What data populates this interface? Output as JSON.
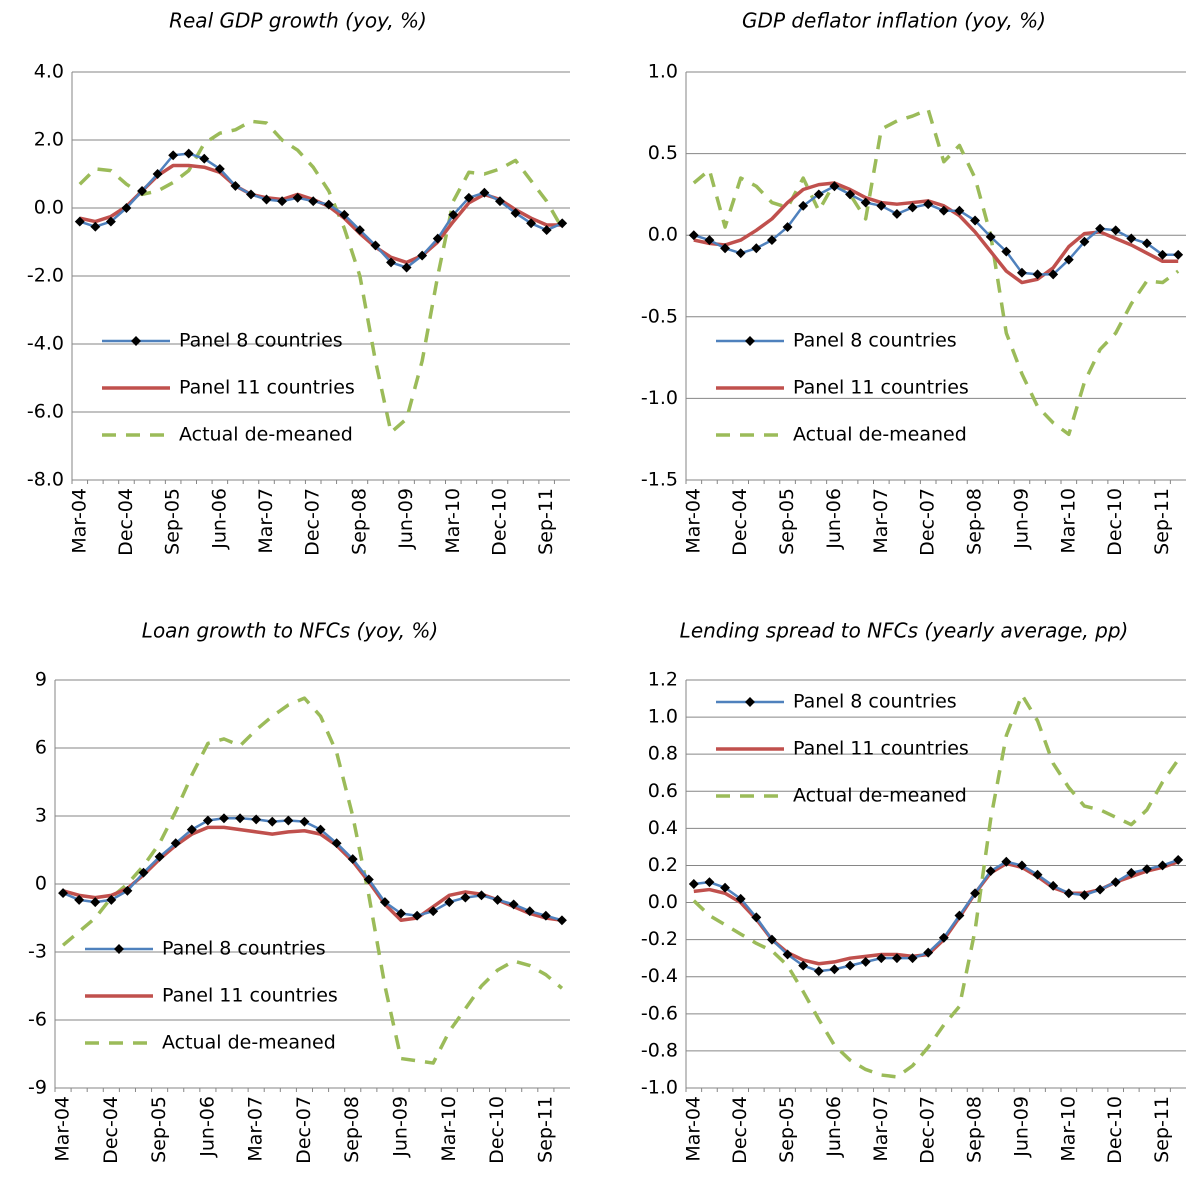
{
  "chart_data": [
    {
      "type": "line",
      "title": "Real GDP growth (yoy, %)",
      "categories": [
        "Mar-04",
        null,
        null,
        "Dec-04",
        null,
        null,
        "Sep-05",
        null,
        null,
        "Jun-06",
        null,
        null,
        "Mar-07",
        null,
        null,
        "Dec-07",
        null,
        null,
        "Sep-08",
        null,
        null,
        "Jun-09",
        null,
        null,
        "Mar-10",
        null,
        null,
        "Dec-10",
        null,
        null,
        "Sep-11",
        null
      ],
      "ylim": [
        -8,
        4
      ],
      "yticks": [
        {
          "value": 4,
          "label": "4.0"
        },
        {
          "value": 2,
          "label": "2.0"
        },
        {
          "value": 0,
          "label": "0.0"
        },
        {
          "value": -2,
          "label": "-2.0"
        },
        {
          "value": -4,
          "label": "-4.0"
        },
        {
          "value": -6,
          "label": "-6.0"
        },
        {
          "value": -8,
          "label": "-8.0"
        }
      ],
      "grid": true,
      "legend": "lower left",
      "series": [
        {
          "name": "Panel 8 countries",
          "color": "#4f81bd",
          "values": [
            -0.4,
            -0.55,
            -0.4,
            0.0,
            0.5,
            1.0,
            1.55,
            1.6,
            1.45,
            1.15,
            0.65,
            0.4,
            0.25,
            0.2,
            0.3,
            0.2,
            0.1,
            -0.2,
            -0.65,
            -1.1,
            -1.6,
            -1.75,
            -1.4,
            -0.9,
            -0.2,
            0.3,
            0.45,
            0.2,
            -0.15,
            -0.45,
            -0.65,
            -0.45
          ]
        },
        {
          "name": "Panel 11 countries",
          "color": "#c0504d",
          "values": [
            -0.3,
            -0.4,
            -0.25,
            0.05,
            0.5,
            0.95,
            1.25,
            1.25,
            1.2,
            1.05,
            0.65,
            0.4,
            0.3,
            0.25,
            0.4,
            0.25,
            0.05,
            -0.3,
            -0.75,
            -1.15,
            -1.45,
            -1.6,
            -1.4,
            -1.0,
            -0.4,
            0.15,
            0.4,
            0.25,
            -0.05,
            -0.3,
            -0.5,
            -0.5
          ]
        },
        {
          "name": "Actual de-meaned",
          "color": "#9bbb59",
          "values": [
            0.7,
            1.15,
            1.1,
            0.7,
            0.4,
            0.5,
            0.75,
            1.1,
            1.9,
            2.2,
            2.3,
            2.55,
            2.5,
            2.0,
            1.7,
            1.2,
            0.5,
            -0.6,
            -2.0,
            -4.5,
            -6.6,
            -6.2,
            -4.5,
            -2.0,
            0.2,
            1.05,
            1.0,
            1.15,
            1.4,
            0.8,
            0.2,
            -0.6
          ]
        }
      ]
    },
    {
      "type": "line",
      "title": "GDP deflator inflation (yoy, %)",
      "categories": [
        "Mar-04",
        null,
        null,
        "Dec-04",
        null,
        null,
        "Sep-05",
        null,
        null,
        "Jun-06",
        null,
        null,
        "Mar-07",
        null,
        null,
        "Dec-07",
        null,
        null,
        "Sep-08",
        null,
        null,
        "Jun-09",
        null,
        null,
        "Mar-10",
        null,
        null,
        "Dec-10",
        null,
        null,
        "Sep-11",
        null
      ],
      "ylim": [
        -1.5,
        1
      ],
      "yticks": [
        {
          "value": 1,
          "label": "1.0"
        },
        0.5,
        {
          "value": 0,
          "label": "0.0"
        },
        -0.5,
        {
          "value": -1,
          "label": "-1.0"
        },
        -1.5
      ],
      "grid": true,
      "legend": "lower left",
      "series": [
        {
          "name": "Panel 8 countries",
          "color": "#4f81bd",
          "values": [
            0.0,
            -0.03,
            -0.08,
            -0.11,
            -0.08,
            -0.03,
            0.05,
            0.18,
            0.25,
            0.3,
            0.25,
            0.2,
            0.18,
            0.13,
            0.17,
            0.19,
            0.15,
            0.15,
            0.09,
            -0.01,
            -0.1,
            -0.23,
            -0.24,
            -0.24,
            -0.15,
            -0.04,
            0.04,
            0.03,
            -0.02,
            -0.05,
            -0.12,
            -0.12
          ]
        },
        {
          "name": "Panel 11 countries",
          "color": "#c0504d",
          "values": [
            -0.03,
            -0.05,
            -0.06,
            -0.03,
            0.03,
            0.1,
            0.2,
            0.28,
            0.31,
            0.32,
            0.28,
            0.23,
            0.2,
            0.19,
            0.2,
            0.21,
            0.18,
            0.12,
            0.02,
            -0.1,
            -0.22,
            -0.29,
            -0.27,
            -0.2,
            -0.07,
            0.01,
            0.02,
            -0.02,
            -0.06,
            -0.11,
            -0.16,
            -0.16
          ]
        },
        {
          "name": "Actual de-meaned",
          "color": "#9bbb59",
          "values": [
            0.32,
            0.4,
            0.05,
            0.35,
            0.3,
            0.2,
            0.17,
            0.35,
            0.15,
            0.32,
            0.25,
            0.1,
            0.65,
            0.7,
            0.73,
            0.77,
            0.45,
            0.55,
            0.35,
            0.0,
            -0.6,
            -0.85,
            -1.05,
            -1.15,
            -1.22,
            -0.9,
            -0.7,
            -0.6,
            -0.42,
            -0.28,
            -0.29,
            -0.22
          ]
        }
      ]
    },
    {
      "type": "line",
      "title": "Loan growth to NFCs (yoy, %)",
      "categories": [
        "Mar-04",
        null,
        null,
        "Dec-04",
        null,
        null,
        "Sep-05",
        null,
        null,
        "Jun-06",
        null,
        null,
        "Mar-07",
        null,
        null,
        "Dec-07",
        null,
        null,
        "Sep-08",
        null,
        null,
        "Jun-09",
        null,
        null,
        "Mar-10",
        null,
        null,
        "Dec-10",
        null,
        null,
        "Sep-11",
        null
      ],
      "ylim": [
        -9,
        9
      ],
      "yticks": [
        9,
        6,
        3,
        0,
        -3,
        -6,
        -9
      ],
      "grid": true,
      "legend": "lower left",
      "series": [
        {
          "name": "Panel 8 countries",
          "color": "#4f81bd",
          "values": [
            -0.4,
            -0.7,
            -0.8,
            -0.7,
            -0.3,
            0.5,
            1.2,
            1.8,
            2.4,
            2.8,
            2.9,
            2.9,
            2.85,
            2.75,
            2.8,
            2.75,
            2.4,
            1.8,
            1.1,
            0.2,
            -0.8,
            -1.3,
            -1.4,
            -1.2,
            -0.8,
            -0.6,
            -0.5,
            -0.7,
            -0.9,
            -1.2,
            -1.4,
            -1.6
          ]
        },
        {
          "name": "Panel 11 countries",
          "color": "#c0504d",
          "values": [
            -0.3,
            -0.5,
            -0.6,
            -0.5,
            -0.2,
            0.4,
            1.1,
            1.7,
            2.2,
            2.5,
            2.5,
            2.4,
            2.3,
            2.2,
            2.3,
            2.35,
            2.2,
            1.7,
            1.0,
            0.1,
            -0.9,
            -1.6,
            -1.5,
            -1.0,
            -0.5,
            -0.35,
            -0.45,
            -0.7,
            -1.0,
            -1.3,
            -1.5,
            -1.6
          ]
        },
        {
          "name": "Actual de-meaned",
          "color": "#9bbb59",
          "values": [
            -2.7,
            -2.1,
            -1.5,
            -0.6,
            0.0,
            0.8,
            1.8,
            3.2,
            4.8,
            6.2,
            6.4,
            6.1,
            6.8,
            7.4,
            7.9,
            8.2,
            7.4,
            5.8,
            3.0,
            -0.5,
            -4.5,
            -7.7,
            -7.8,
            -7.9,
            -6.5,
            -5.5,
            -4.5,
            -3.8,
            -3.4,
            -3.6,
            -4.0,
            -4.6
          ]
        }
      ]
    },
    {
      "type": "line",
      "title": "Lending spread to NFCs (yearly average, pp)",
      "categories": [
        "Mar-04",
        null,
        null,
        "Dec-04",
        null,
        null,
        "Sep-05",
        null,
        null,
        "Jun-06",
        null,
        null,
        "Mar-07",
        null,
        null,
        "Dec-07",
        null,
        null,
        "Sep-08",
        null,
        null,
        "Jun-09",
        null,
        null,
        "Mar-10",
        null,
        null,
        "Dec-10",
        null,
        null,
        "Sep-11",
        null
      ],
      "ylim": [
        -1,
        1.2
      ],
      "yticks": [
        1.2,
        {
          "value": 1,
          "label": "1.0"
        },
        0.8,
        0.6,
        0.4,
        0.2,
        {
          "value": 0,
          "label": "0.0"
        },
        -0.2,
        -0.4,
        -0.6,
        -0.8,
        {
          "value": -1,
          "label": "-1.0"
        }
      ],
      "grid": true,
      "legend": "upper left",
      "series": [
        {
          "name": "Panel 8 countries",
          "color": "#4f81bd",
          "values": [
            0.1,
            0.11,
            0.08,
            0.02,
            -0.08,
            -0.2,
            -0.28,
            -0.34,
            -0.37,
            -0.36,
            -0.34,
            -0.32,
            -0.3,
            -0.3,
            -0.3,
            -0.27,
            -0.19,
            -0.07,
            0.05,
            0.17,
            0.22,
            0.2,
            0.15,
            0.09,
            0.05,
            0.04,
            0.07,
            0.11,
            0.16,
            0.18,
            0.2,
            0.23
          ]
        },
        {
          "name": "Panel 11 countries",
          "color": "#c0504d",
          "values": [
            0.06,
            0.07,
            0.05,
            0.0,
            -0.09,
            -0.2,
            -0.27,
            -0.31,
            -0.33,
            -0.32,
            -0.3,
            -0.29,
            -0.28,
            -0.28,
            -0.29,
            -0.28,
            -0.2,
            -0.08,
            0.05,
            0.16,
            0.21,
            0.19,
            0.14,
            0.08,
            0.05,
            0.05,
            0.07,
            0.11,
            0.14,
            0.17,
            0.19,
            0.22
          ]
        },
        {
          "name": "Actual de-meaned",
          "color": "#9bbb59",
          "values": [
            0.01,
            -0.07,
            -0.12,
            -0.17,
            -0.22,
            -0.26,
            -0.34,
            -0.48,
            -0.63,
            -0.77,
            -0.85,
            -0.9,
            -0.93,
            -0.94,
            -0.88,
            -0.78,
            -0.66,
            -0.56,
            -0.15,
            0.45,
            0.9,
            1.12,
            0.98,
            0.75,
            0.62,
            0.52,
            0.5,
            0.46,
            0.42,
            0.5,
            0.65,
            0.77
          ]
        }
      ]
    }
  ]
}
